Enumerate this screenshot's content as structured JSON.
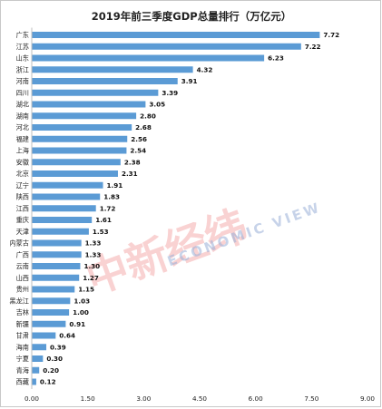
{
  "watermark": {
    "cn_label": "中新经纬",
    "en_label": "ECONOMIC VIEW"
  },
  "chart_data": {
    "type": "bar",
    "orientation": "horizontal",
    "title": "2019年前三季度GDP总量排行（万亿元）",
    "xlabel": "",
    "ylabel": "",
    "xlim": [
      0,
      9
    ],
    "xticks": [
      "0.00",
      "1.50",
      "3.00",
      "4.50",
      "6.00",
      "7.50",
      "9.00"
    ],
    "grid": false,
    "legend": "none",
    "bar_color": "#5b9bd5",
    "categories": [
      "广东",
      "江苏",
      "山东",
      "浙江",
      "河南",
      "四川",
      "湖北",
      "湖南",
      "河北",
      "福建",
      "上海",
      "安徽",
      "北京",
      "辽宁",
      "陕西",
      "江西",
      "重庆",
      "天津",
      "内蒙古",
      "广西",
      "云南",
      "山西",
      "贵州",
      "黑龙江",
      "吉林",
      "新疆",
      "甘肃",
      "海南",
      "宁夏",
      "青海",
      "西藏"
    ],
    "values": [
      7.72,
      7.22,
      6.23,
      4.32,
      3.91,
      3.39,
      3.05,
      2.8,
      2.68,
      2.56,
      2.54,
      2.38,
      2.31,
      1.91,
      1.83,
      1.72,
      1.61,
      1.53,
      1.33,
      1.33,
      1.3,
      1.27,
      1.15,
      1.03,
      1.0,
      0.91,
      0.64,
      0.39,
      0.3,
      0.2,
      0.12
    ]
  }
}
